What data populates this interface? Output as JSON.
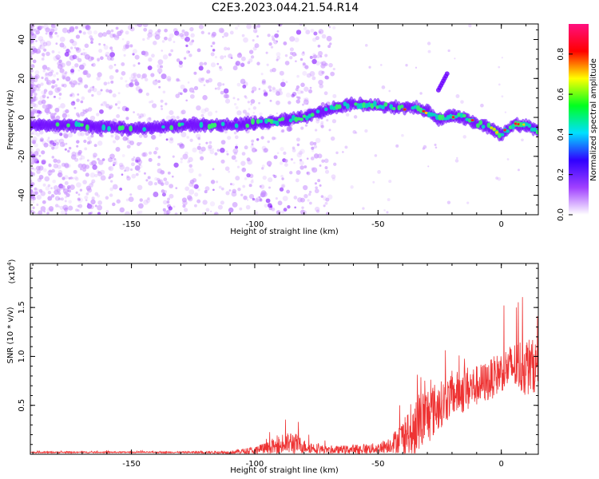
{
  "title": "C2E3.2023.044.21.54.R14",
  "chart_data": [
    {
      "type": "heatmap",
      "xlabel": "Height of straight line (km)",
      "ylabel": "Frequency (Hz)",
      "xlim": [
        -191,
        15
      ],
      "ylim": [
        -50,
        48
      ],
      "xticks": [
        "-150",
        "-100",
        "-50",
        "0"
      ],
      "yticks": [
        "-40",
        "-20",
        "0",
        "20",
        "40"
      ],
      "colorbar": {
        "label": "Normalized spectral amplitude",
        "range": [
          0,
          0.95
        ],
        "ticks": [
          "0.0",
          "0.2",
          "0.4",
          "0.6",
          "0.8"
        ],
        "colormap": [
          "#ffffff",
          "#a040ff",
          "#3000ff",
          "#00e0ff",
          "#00ff20",
          "#ffff00",
          "#ff0000",
          "#ff1080"
        ]
      },
      "ridge_frequency_hz": {
        "x": [
          -191,
          -175,
          -160,
          -150,
          -140,
          -130,
          -120,
          -110,
          -100,
          -90,
          -80,
          -70,
          -60,
          -50,
          -40,
          -35,
          -30,
          -25,
          -20,
          -15,
          -10,
          -5,
          0,
          5,
          10,
          15
        ],
        "y": [
          -4,
          -4,
          -5,
          -6,
          -5,
          -4,
          -4,
          -4,
          -3,
          -2,
          0,
          4,
          7,
          6,
          5,
          5,
          3,
          -1,
          1,
          0,
          -3,
          -5,
          -9,
          -4,
          -4,
          -7
        ]
      },
      "colors": {
        "noise": "#c890ff",
        "ridge_edge": "#6a00ff",
        "ridge_core": "#00e0c0",
        "peak": "#ff2020"
      }
    },
    {
      "type": "line",
      "xlabel": "Height of straight line (km)",
      "ylabel": "SNR (10 * v/v)",
      "y_multiplier": "(x10",
      "y_multiplier_exp": "4",
      "xlim": [
        -191,
        15
      ],
      "ylim": [
        0,
        1.95
      ],
      "xticks": [
        "-150",
        "-100",
        "-50",
        "0"
      ],
      "yticks": [
        "0.5",
        "1.0",
        "1.5"
      ],
      "line_color": "#ee3333",
      "envelope": {
        "x": [
          -191,
          -160,
          -130,
          -110,
          -100,
          -90,
          -85,
          -80,
          -70,
          -60,
          -50,
          -45,
          -40,
          -35,
          -30,
          -25,
          -20,
          -15,
          -10,
          -5,
          0,
          5,
          10,
          15
        ],
        "base": [
          0.02,
          0.02,
          0.02,
          0.02,
          0.04,
          0.08,
          0.12,
          0.08,
          0.04,
          0.05,
          0.06,
          0.1,
          0.18,
          0.3,
          0.4,
          0.5,
          0.6,
          0.66,
          0.7,
          0.75,
          0.85,
          0.9,
          0.9,
          0.9
        ],
        "amp": [
          0.01,
          0.01,
          0.01,
          0.02,
          0.06,
          0.12,
          0.18,
          0.1,
          0.05,
          0.07,
          0.08,
          0.12,
          0.25,
          0.45,
          0.45,
          0.35,
          0.3,
          0.35,
          0.3,
          0.3,
          0.3,
          0.35,
          0.45,
          0.35
        ]
      }
    }
  ]
}
